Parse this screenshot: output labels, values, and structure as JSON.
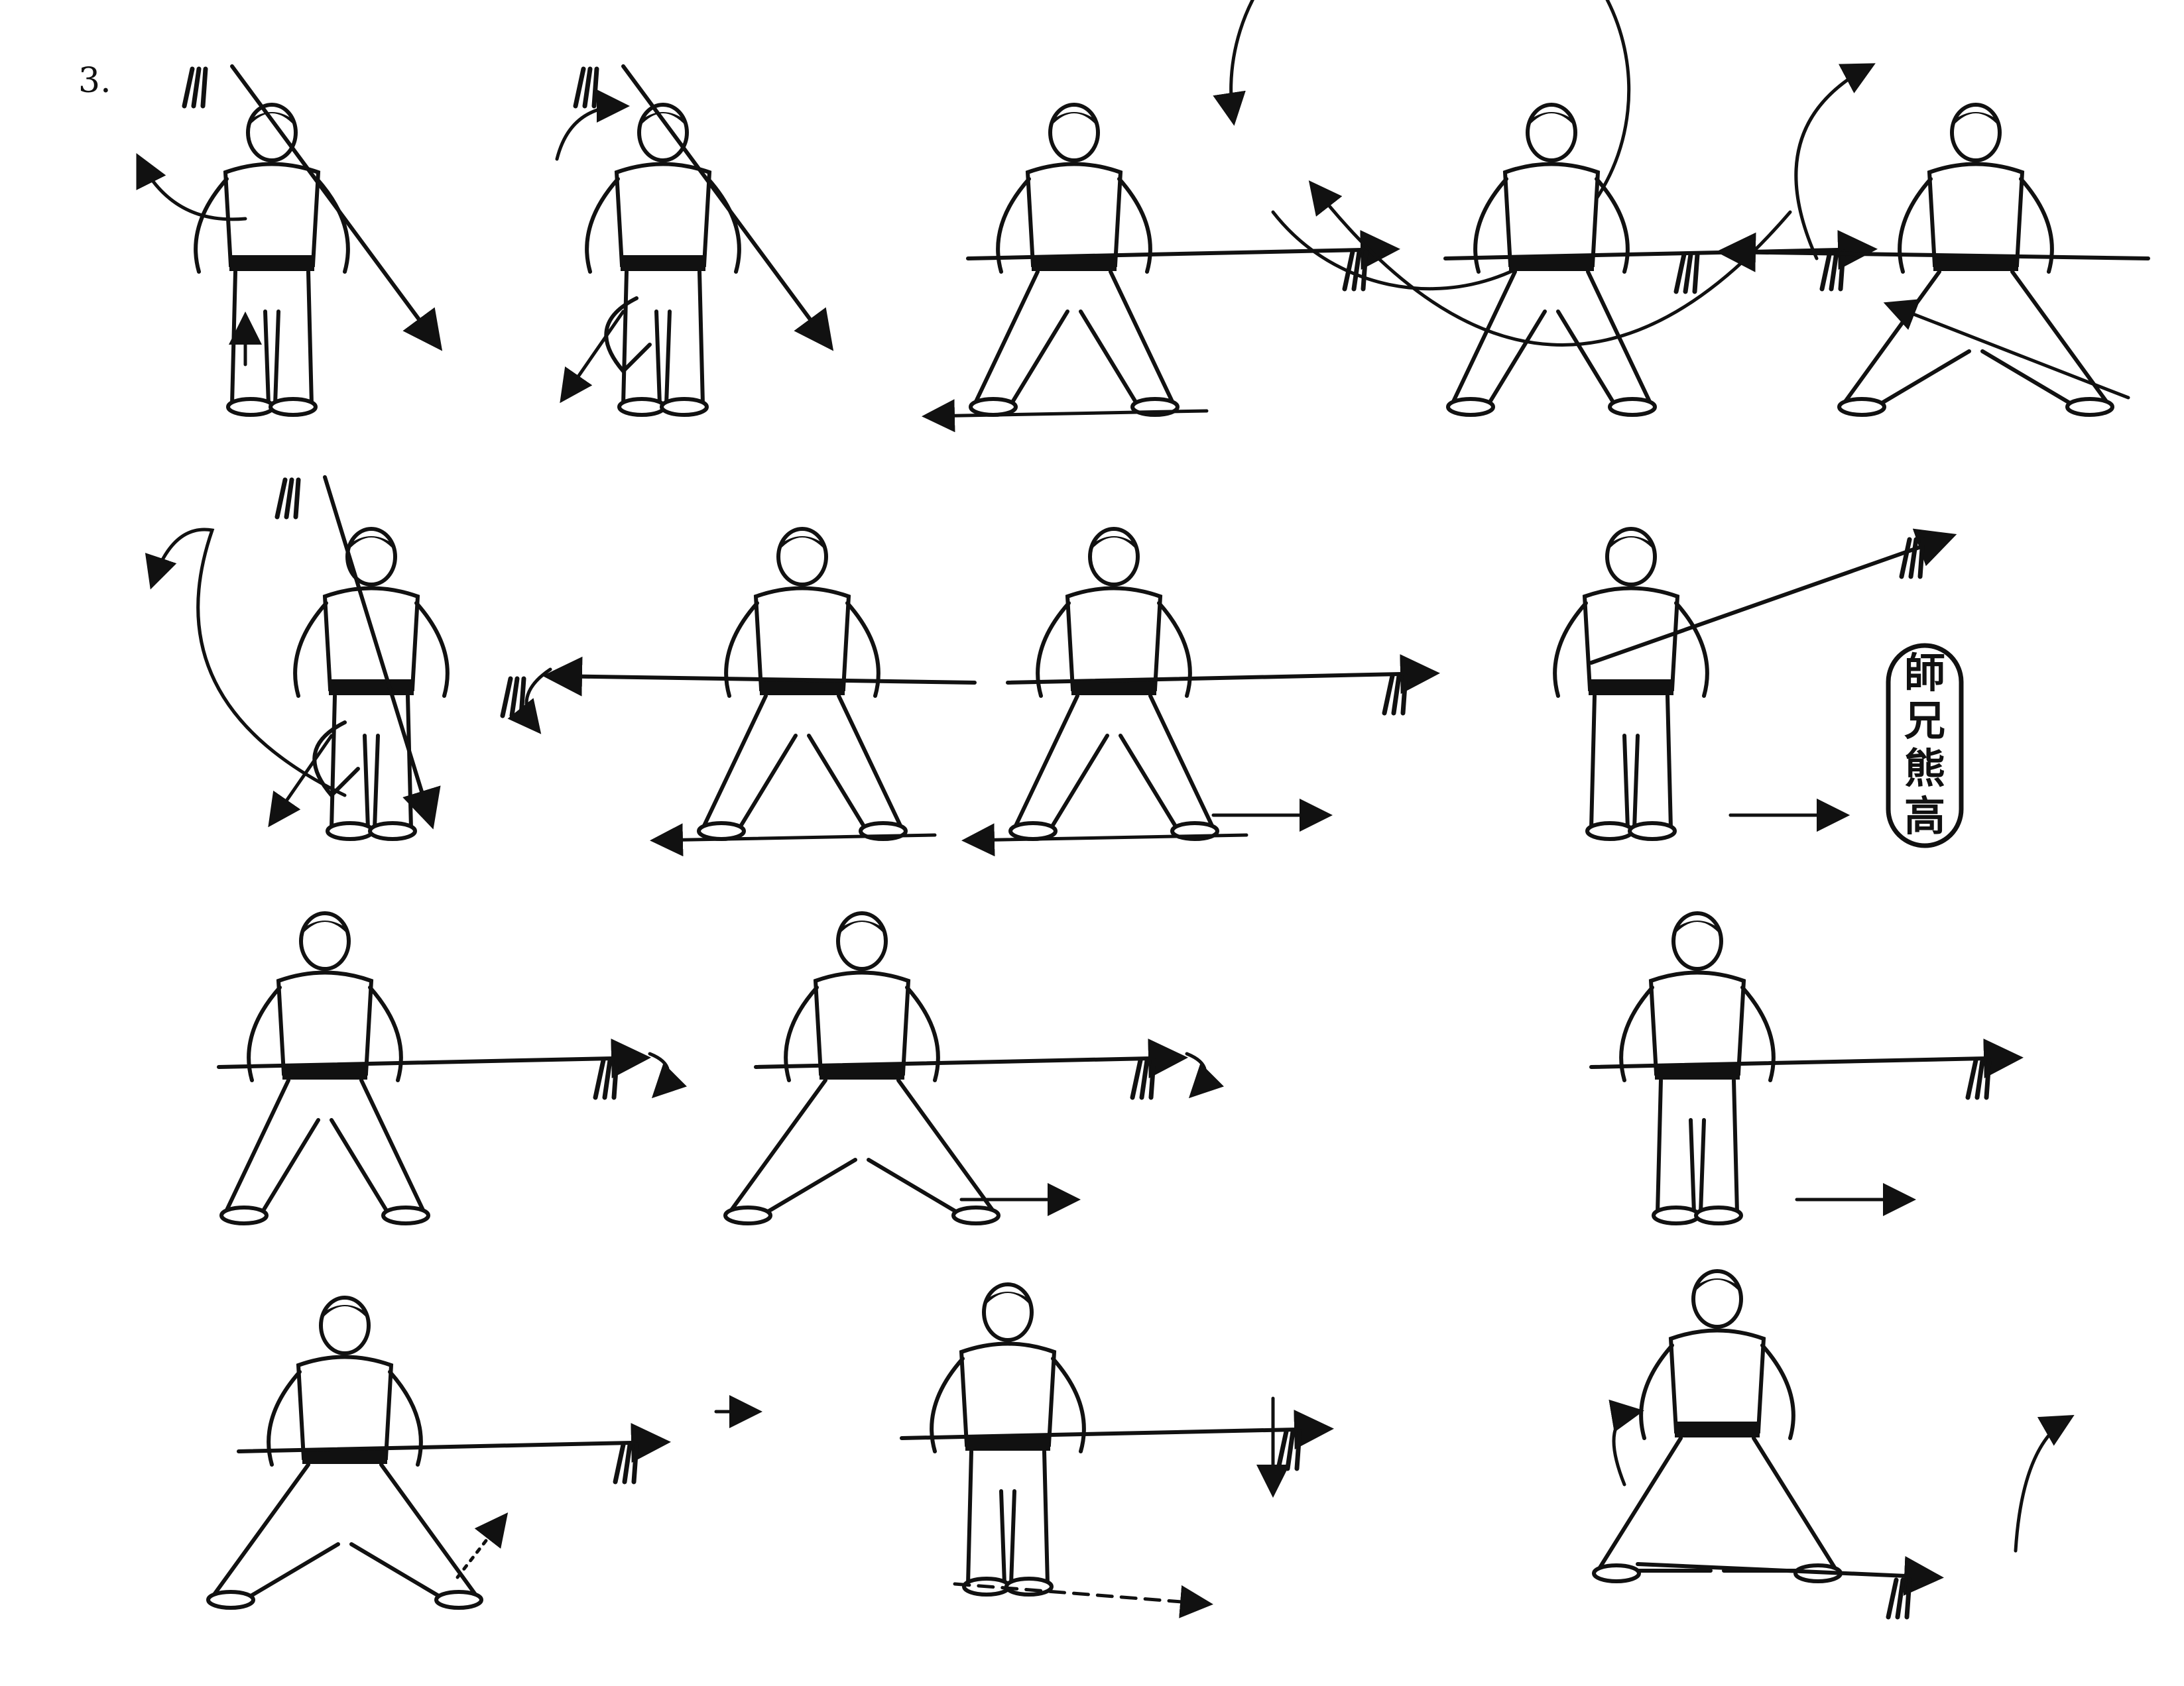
{
  "page": {
    "number": "3."
  },
  "seal": {
    "chars": [
      "師",
      "兄",
      "熊",
      "高"
    ]
  },
  "colors": {
    "ink": "#111111",
    "paper": "#ffffff"
  },
  "figures": [
    {
      "spear": "diagonal-down",
      "stance": "standing-turn",
      "arrows": [
        "curved-left",
        "up"
      ]
    },
    {
      "spear": "diagonal-down",
      "stance": "knee-raise",
      "arrows": [
        "curved-up",
        "down-left"
      ]
    },
    {
      "spear": "horizontal-right",
      "stance": "horse",
      "arrows": [
        "circle",
        "left"
      ]
    },
    {
      "spear": "horizontal-right",
      "stance": "wide",
      "arrows": [
        "arc-under"
      ]
    },
    {
      "spear": "horizontal-left",
      "stance": "bow",
      "arrows": [
        "arc-left",
        "diagonal"
      ]
    },
    {
      "spear": "vertical",
      "stance": "knee-raise",
      "arrows": [
        "loop-left",
        "down-left"
      ]
    },
    {
      "spear": "horizontal-left",
      "stance": "horse",
      "arrows": [
        "curl-left",
        "left"
      ]
    },
    {
      "spear": "horizontal-right",
      "stance": "horse",
      "arrows": [
        "right",
        "left"
      ]
    },
    {
      "spear": "diagonal-up",
      "stance": "upright",
      "arrows": [
        "right",
        "right"
      ]
    },
    {
      "spear": "horizontal-right",
      "stance": "wide",
      "arrows": [
        "curl-right"
      ]
    },
    {
      "spear": "horizontal-right",
      "stance": "lunge",
      "arrows": [
        "curl-right",
        "right"
      ]
    },
    {
      "spear": "horizontal-right",
      "stance": "cross-step",
      "arrows": [
        "right"
      ]
    },
    {
      "spear": "horizontal-right",
      "stance": "deep-lunge",
      "arrows": [
        "double",
        "dotted-up"
      ]
    },
    {
      "spear": "horizontal-right",
      "stance": "kneel-step",
      "arrows": [
        "down",
        "dashed-right"
      ]
    },
    {
      "spear": "ground-right",
      "stance": "crouch",
      "arrows": [
        "curl-up",
        "hook"
      ]
    }
  ]
}
